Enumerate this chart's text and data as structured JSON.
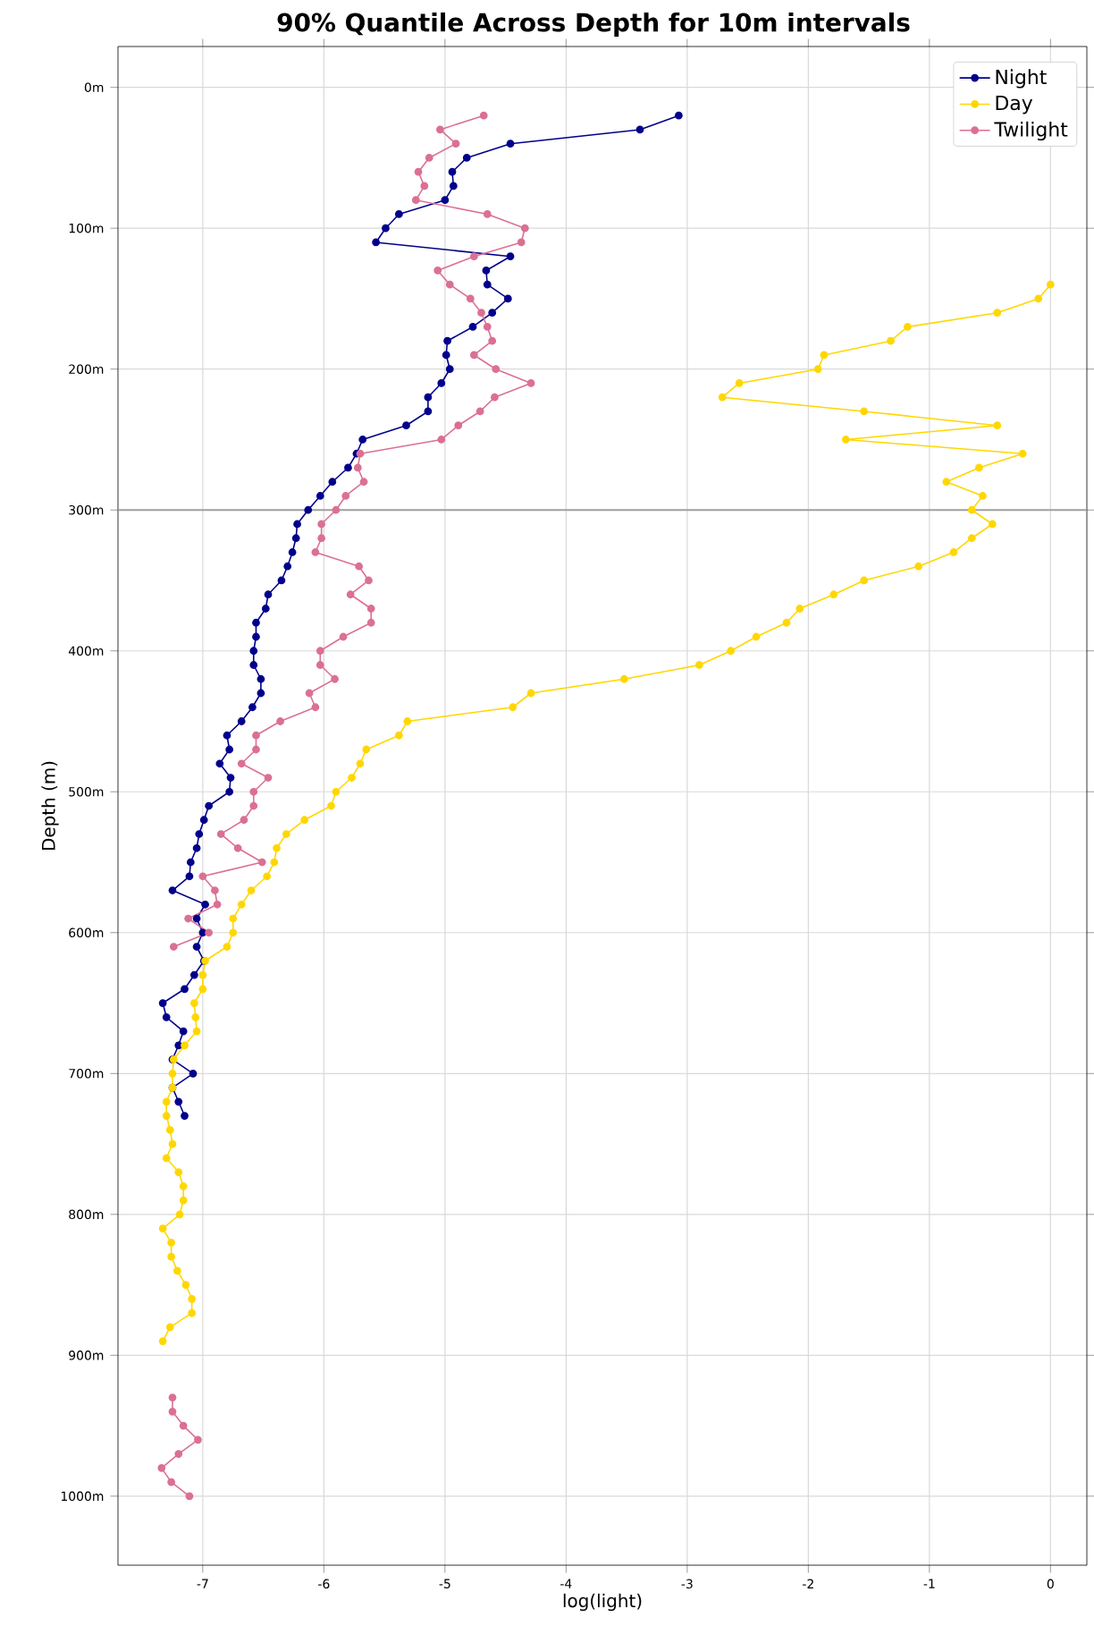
{
  "chart_data": {
    "type": "line",
    "title": "90% Quantile Across Depth for 10m intervals",
    "xlabel": "log(light)",
    "ylabel": "Depth (m)",
    "xlim": [
      -7.7,
      0.3
    ],
    "ylim": [
      1049,
      -29
    ],
    "xticks": [
      -7,
      -6,
      -5,
      -4,
      -3,
      -2,
      -1,
      0
    ],
    "yticks": [
      {
        "value": 0,
        "label": "0m"
      },
      {
        "value": 100,
        "label": "100m"
      },
      {
        "value": 200,
        "label": "200m"
      },
      {
        "value": 300,
        "label": "300m"
      },
      {
        "value": 400,
        "label": "400m"
      },
      {
        "value": 500,
        "label": "500m"
      },
      {
        "value": 600,
        "label": "600m"
      },
      {
        "value": 700,
        "label": "700m"
      },
      {
        "value": 800,
        "label": "800m"
      },
      {
        "value": 900,
        "label": "900m"
      },
      {
        "value": 1000,
        "label": "1000m"
      }
    ],
    "grid": true,
    "legend": "top right",
    "marker": "circle",
    "line_style": "solid",
    "ref_lines": [
      {
        "axis": "y",
        "value": 300,
        "color": "#a0a0a0"
      }
    ],
    "series": [
      {
        "name": "Night",
        "color": "#00008b",
        "x": [
          -3.07,
          -3.39,
          -4.46,
          -4.82,
          -4.94,
          -4.93,
          -5.0,
          -5.38,
          -5.49,
          -5.57,
          -4.46,
          -4.66,
          -4.65,
          -4.48,
          -4.61,
          -4.77,
          -4.98,
          -4.99,
          -4.96,
          -5.03,
          -5.14,
          -5.14,
          -5.32,
          -5.68,
          -5.73,
          -5.8,
          -5.93,
          -6.03,
          -6.13,
          -6.22,
          -6.23,
          -6.26,
          -6.3,
          -6.35,
          -6.46,
          -6.48,
          -6.56,
          -6.56,
          -6.58,
          -6.58,
          -6.52,
          -6.52,
          -6.59,
          -6.68,
          -6.8,
          -6.78,
          -6.86,
          -6.77,
          -6.78,
          -6.95,
          -6.99,
          -7.03,
          -7.05,
          -7.1,
          -7.11,
          -7.25,
          -6.98,
          -7.05,
          -7.0,
          -7.05,
          -6.99,
          -7.07,
          -7.15,
          -7.33,
          -7.3,
          -7.16,
          -7.2,
          -7.25,
          -7.08,
          -7.25,
          -7.2,
          -7.15
        ],
        "values": [
          20,
          30,
          40,
          50,
          60,
          70,
          80,
          90,
          100,
          110,
          120,
          130,
          140,
          150,
          160,
          170,
          180,
          190,
          200,
          210,
          220,
          230,
          240,
          250,
          260,
          270,
          280,
          290,
          300,
          310,
          320,
          330,
          340,
          350,
          360,
          370,
          380,
          390,
          400,
          410,
          420,
          430,
          440,
          450,
          460,
          470,
          480,
          490,
          500,
          510,
          520,
          530,
          540,
          550,
          560,
          570,
          580,
          590,
          600,
          610,
          620,
          630,
          640,
          650,
          660,
          670,
          680,
          690,
          700,
          710,
          720,
          730
        ]
      },
      {
        "name": "Day",
        "color": "#ffd700",
        "x": [
          0.0,
          -0.1,
          -0.44,
          -1.18,
          -1.32,
          -1.87,
          -1.92,
          -2.57,
          -2.71,
          -1.54,
          -0.44,
          -1.69,
          -0.23,
          -0.59,
          -0.86,
          -0.56,
          -0.65,
          -0.48,
          -0.65,
          -0.8,
          -1.09,
          -1.54,
          -1.79,
          -2.07,
          -2.18,
          -2.43,
          -2.64,
          -2.9,
          -3.52,
          -4.29,
          -4.44,
          -5.31,
          -5.38,
          -5.65,
          -5.7,
          -5.77,
          -5.9,
          -5.94,
          -6.16,
          -6.31,
          -6.39,
          -6.41,
          -6.47,
          -6.6,
          -6.68,
          -6.75,
          -6.75,
          -6.8,
          -6.98,
          -7.0,
          -7.0,
          -7.07,
          -7.06,
          -7.05,
          -7.15,
          -7.24,
          -7.25,
          -7.25,
          -7.3,
          -7.3,
          -7.27,
          -7.25,
          -7.3,
          -7.2,
          -7.16,
          -7.16,
          -7.19,
          -7.33,
          -7.26,
          -7.26,
          -7.21,
          -7.14,
          -7.09,
          -7.09,
          -7.27,
          -7.33
        ],
        "values": [
          140,
          150,
          160,
          170,
          180,
          190,
          200,
          210,
          220,
          230,
          240,
          250,
          260,
          270,
          280,
          290,
          300,
          310,
          320,
          330,
          340,
          350,
          360,
          370,
          380,
          390,
          400,
          410,
          420,
          430,
          440,
          450,
          460,
          470,
          480,
          490,
          500,
          510,
          520,
          530,
          540,
          550,
          560,
          570,
          580,
          590,
          600,
          610,
          620,
          630,
          640,
          650,
          660,
          670,
          680,
          690,
          700,
          710,
          720,
          730,
          740,
          750,
          760,
          770,
          780,
          790,
          800,
          810,
          820,
          830,
          840,
          850,
          860,
          870,
          880,
          890
        ]
      },
      {
        "name": "Twilight",
        "color": "#db7093",
        "x": [
          -4.68,
          -5.04,
          -4.91,
          -5.13,
          -5.22,
          -5.17,
          -5.24,
          -4.65,
          -4.34,
          -4.37,
          -4.76,
          -5.06,
          -4.96,
          -4.79,
          -4.7,
          -4.65,
          -4.61,
          -4.76,
          -4.58,
          -4.29,
          -4.59,
          -4.71,
          -4.89,
          -5.03,
          -5.7,
          -5.72,
          -5.67,
          -5.82,
          -5.9,
          -6.02,
          -6.02,
          -6.07,
          -5.71,
          -5.63,
          -5.78,
          -5.61,
          -5.61,
          -5.84,
          -6.03,
          -6.03,
          -5.91,
          -6.12,
          -6.07,
          -6.36,
          -6.56,
          -6.56,
          -6.68,
          -6.46,
          -6.58,
          -6.58,
          -6.66,
          -6.85,
          -6.71,
          -6.51,
          -7.0,
          -6.9,
          -6.88,
          -7.12,
          -6.95,
          -7.24,
          null,
          -7.25,
          -7.25,
          -7.16,
          -7.04,
          -7.2,
          -7.34,
          -7.26,
          -7.11
        ],
        "values": [
          20,
          30,
          40,
          50,
          60,
          70,
          80,
          90,
          100,
          110,
          120,
          130,
          140,
          150,
          160,
          170,
          180,
          190,
          200,
          210,
          220,
          230,
          240,
          250,
          260,
          270,
          280,
          290,
          300,
          310,
          320,
          330,
          340,
          350,
          360,
          370,
          380,
          390,
          400,
          410,
          420,
          430,
          440,
          450,
          460,
          470,
          480,
          490,
          500,
          510,
          520,
          530,
          540,
          550,
          560,
          570,
          580,
          590,
          600,
          610,
          null,
          930,
          940,
          950,
          960,
          970,
          980,
          990,
          1000
        ]
      }
    ]
  }
}
